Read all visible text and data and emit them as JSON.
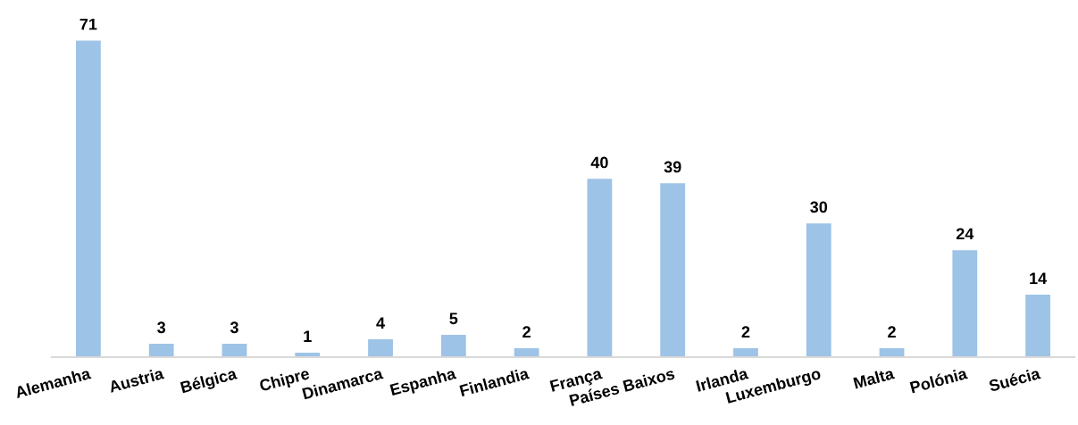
{
  "chart_data": {
    "type": "bar",
    "categories": [
      "Alemanha",
      "Austria",
      "Bélgica",
      "Chipre",
      "Dinamarca",
      "Espanha",
      "Finlandia",
      "França",
      "Países Baixos",
      "Irlanda",
      "Luxemburgo",
      "Malta",
      "Polónia",
      "Suécia"
    ],
    "values": [
      71,
      3,
      3,
      1,
      4,
      5,
      2,
      40,
      39,
      2,
      30,
      2,
      24,
      14
    ],
    "color": "#9dc3e6",
    "data_labels": true,
    "grid": false,
    "legend": false
  }
}
